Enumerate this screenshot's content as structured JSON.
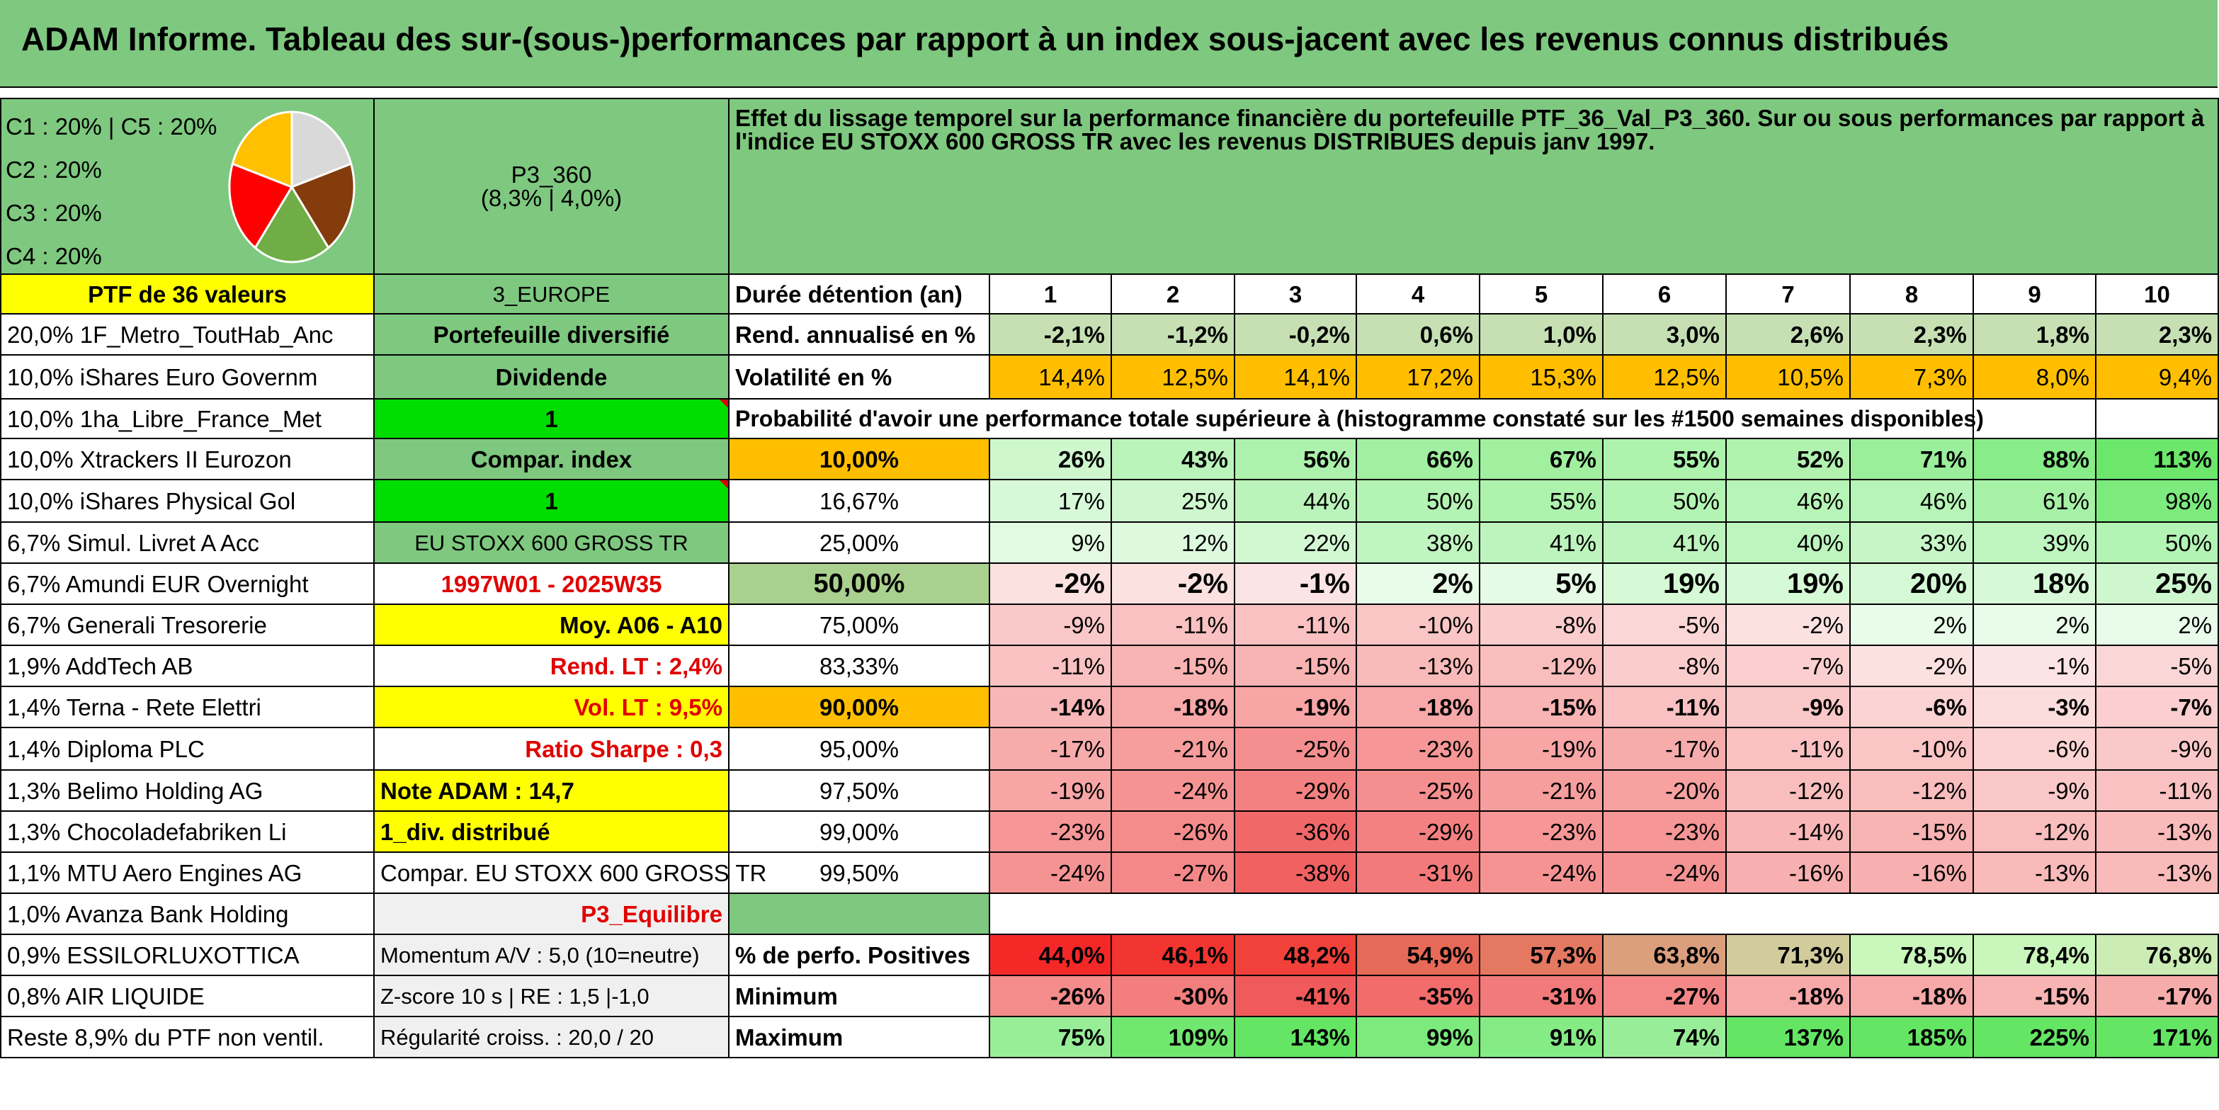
{
  "title": "ADAM Informe. Tableau des sur-(sous-)performances par rapport à un index sous-jacent avec les revenus connus distribués",
  "legend": [
    "C1 : 20% | C5 : 20%",
    "C2 : 20%",
    "C3 : 20%",
    "C4 : 20%"
  ],
  "pie_colors": [
    "#d9d9d9",
    "#843c0c",
    "#70ad47",
    "#ff0000",
    "#ffc000"
  ],
  "portfolio_code": "P3_360",
  "portfolio_stats": "(8,3% | 4,0%)",
  "description": "Effet du lissage temporel sur la performance financière du portefeuille PTF_36_Val_P3_360. Sur ou sous performances par rapport à l'indice EU STOXX 600 GROSS TR avec les revenus DISTRIBUES depuis janv 1997.",
  "ptf_label": "PTF de 36 valeurs",
  "region": "3_EUROPE",
  "holdings": [
    "20,0% 1F_Metro_ToutHab_Anc",
    "10,0% iShares Euro Governm",
    "10,0% 1ha_Libre_France_Met",
    "10,0% Xtrackers II Eurozon",
    "10,0% iShares Physical Gol",
    "6,7% Simul. Livret A Acc",
    "6,7% Amundi EUR Overnight",
    "6,7% Generali Tresorerie",
    "1,9% AddTech AB",
    "1,4% Terna - Rete Elettri",
    "1,4% Diploma PLC",
    "1,3% Belimo Holding AG",
    "1,3% Chocoladefabriken Li",
    "1,1% MTU Aero Engines AG",
    "1,0% Avanza Bank Holding",
    "0,9% ESSILORLUXOTTICA",
    "0,8% AIR LIQUIDE",
    "Reste 8,9% du PTF non ventil."
  ],
  "info": {
    "diversified": "Portefeuille diversifié",
    "dividend": "Dividende",
    "one_a": "1",
    "compar_index": "Compar. index",
    "one_b": "1",
    "index_name": "EU STOXX 600 GROSS TR",
    "period": "1997W01 - 2025W35",
    "moy": "Moy. A06 - A10",
    "rend_lt": "Rend. LT : 2,4%",
    "vol_lt": "Vol. LT : 9,5%",
    "sharpe": "Ratio Sharpe : 0,3",
    "note": "Note ADAM : 14,7",
    "div": "1_div. distribué",
    "compar2": "Compar. EU STOXX 600 GROSS TR",
    "profile": "P3_Equilibre",
    "momentum": "Momentum A/V : 5,0 (10=neutre)",
    "zscore": "Z-score 10 s | RE : 1,5 |-1,0",
    "regularite": "Régularité croiss. : 20,0 / 20"
  },
  "labels": {
    "duree": "Durée détention (an)",
    "rend": "Rend. annualisé en %",
    "vol": "Volatilité en %",
    "proba": "Probabilité d'avoir une performance totale supérieure à (histogramme constaté sur les #1500 semaines disponibles)",
    "pct_pos": "% de perfo. Positives",
    "minimum": "Minimum",
    "maximum": "Maximum"
  },
  "years": [
    "1",
    "2",
    "3",
    "4",
    "5",
    "6",
    "7",
    "8",
    "9",
    "10"
  ],
  "rend": [
    "-2,1%",
    "-1,2%",
    "-0,2%",
    "0,6%",
    "1,0%",
    "3,0%",
    "2,6%",
    "2,3%",
    "1,8%",
    "2,3%"
  ],
  "vol": [
    "14,4%",
    "12,5%",
    "14,1%",
    "17,2%",
    "15,3%",
    "12,5%",
    "10,5%",
    "7,3%",
    "8,0%",
    "9,4%"
  ],
  "quantiles": [
    "10,00%",
    "16,67%",
    "25,00%",
    "50,00%",
    "75,00%",
    "83,33%",
    "90,00%",
    "95,00%",
    "97,50%",
    "99,00%",
    "99,50%"
  ],
  "grid": [
    [
      "26%",
      "43%",
      "56%",
      "66%",
      "67%",
      "55%",
      "52%",
      "71%",
      "88%",
      "113%"
    ],
    [
      "17%",
      "25%",
      "44%",
      "50%",
      "55%",
      "50%",
      "46%",
      "46%",
      "61%",
      "98%"
    ],
    [
      "9%",
      "12%",
      "22%",
      "38%",
      "41%",
      "41%",
      "40%",
      "33%",
      "39%",
      "50%"
    ],
    [
      "-2%",
      "-2%",
      "-1%",
      "2%",
      "5%",
      "19%",
      "19%",
      "20%",
      "18%",
      "25%"
    ],
    [
      "-9%",
      "-11%",
      "-11%",
      "-10%",
      "-8%",
      "-5%",
      "-2%",
      "2%",
      "2%",
      "2%"
    ],
    [
      "-11%",
      "-15%",
      "-15%",
      "-13%",
      "-12%",
      "-8%",
      "-7%",
      "-2%",
      "-1%",
      "-5%"
    ],
    [
      "-14%",
      "-18%",
      "-19%",
      "-18%",
      "-15%",
      "-11%",
      "-9%",
      "-6%",
      "-3%",
      "-7%"
    ],
    [
      "-17%",
      "-21%",
      "-25%",
      "-23%",
      "-19%",
      "-17%",
      "-11%",
      "-10%",
      "-6%",
      "-9%"
    ],
    [
      "-19%",
      "-24%",
      "-29%",
      "-25%",
      "-21%",
      "-20%",
      "-12%",
      "-12%",
      "-9%",
      "-11%"
    ],
    [
      "-23%",
      "-26%",
      "-36%",
      "-29%",
      "-23%",
      "-23%",
      "-14%",
      "-15%",
      "-12%",
      "-13%"
    ],
    [
      "-24%",
      "-27%",
      "-38%",
      "-31%",
      "-24%",
      "-24%",
      "-16%",
      "-16%",
      "-13%",
      "-13%"
    ]
  ],
  "pct_pos": [
    "44,0%",
    "46,1%",
    "48,2%",
    "54,9%",
    "57,3%",
    "63,8%",
    "71,3%",
    "78,5%",
    "78,4%",
    "76,8%"
  ],
  "minimum": [
    "-26%",
    "-30%",
    "-41%",
    "-35%",
    "-31%",
    "-27%",
    "-18%",
    "-18%",
    "-15%",
    "-17%"
  ],
  "maximum": [
    "75%",
    "109%",
    "143%",
    "99%",
    "91%",
    "74%",
    "137%",
    "185%",
    "225%",
    "171%"
  ]
}
